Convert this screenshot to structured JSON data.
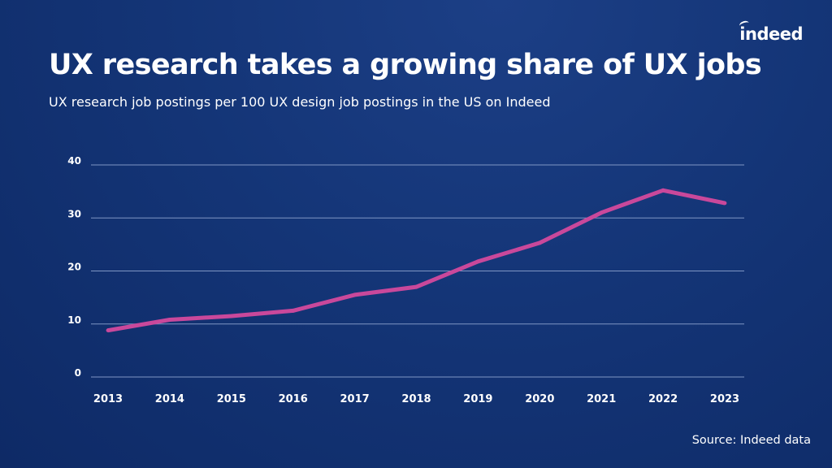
{
  "brand": {
    "logo_text": "indeed"
  },
  "header": {
    "title": "UX research takes a growing share of UX jobs",
    "subtitle": "UX research job postings per 100 UX design job postings in the US on Indeed"
  },
  "footer": {
    "source": "Source: Indeed data"
  },
  "colors": {
    "background": "#143577",
    "line": "#c9489b",
    "grid": "#7f96c4",
    "text": "#ffffff"
  },
  "chart_data": {
    "type": "line",
    "title": "UX research takes a growing share of UX jobs",
    "subtitle": "UX research job postings per 100 UX design job postings in the US on Indeed",
    "xlabel": "",
    "ylabel": "",
    "x": [
      "2013",
      "2014",
      "2015",
      "2016",
      "2017",
      "2018",
      "2019",
      "2020",
      "2021",
      "2022",
      "2023"
    ],
    "series": [
      {
        "values": [
          8.8,
          10.8,
          11.5,
          12.5,
          15.5,
          17.0,
          21.8,
          25.3,
          31.0,
          35.2,
          32.8
        ]
      }
    ],
    "yticks": [
      0,
      10,
      20,
      30,
      40
    ],
    "ylim": [
      0,
      40
    ],
    "grid": true,
    "legend": "none"
  }
}
